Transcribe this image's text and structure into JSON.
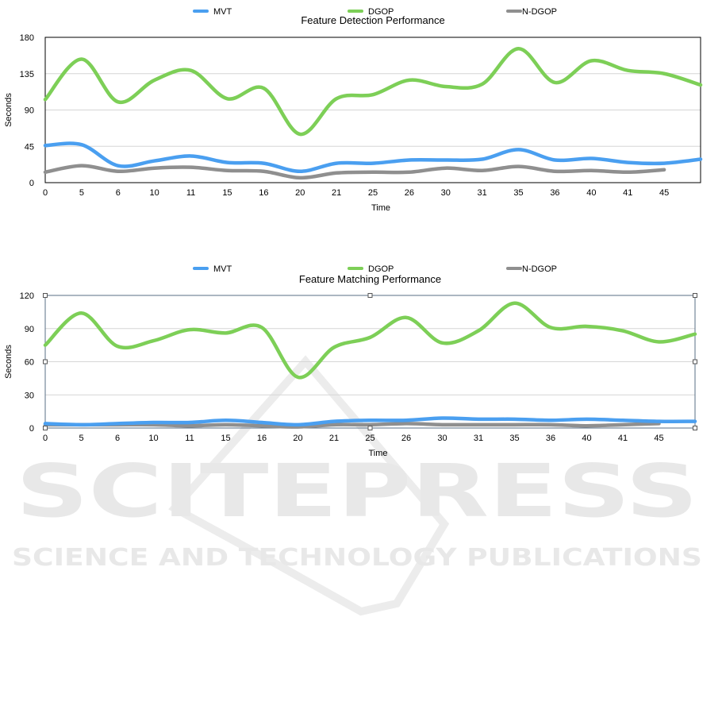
{
  "watermark": {
    "main": "SCITEPRESS",
    "sub": "SCIENCE AND TECHNOLOGY PUBLICATIONS"
  },
  "chart_data": [
    {
      "type": "line",
      "title": "Feature Detection Performance",
      "xlabel": "Time",
      "ylabel": "Seconds",
      "ylim": [
        0,
        180
      ],
      "yticks": [
        0,
        45,
        90,
        135,
        180
      ],
      "grid": true,
      "legend": "top",
      "categories": [
        "0",
        "5",
        "6",
        "10",
        "11",
        "15",
        "16",
        "20",
        "21",
        "25",
        "26",
        "30",
        "31",
        "35",
        "36",
        "40",
        "41",
        "45",
        ""
      ],
      "series": [
        {
          "name": "MVT",
          "color": "#4a9ff0",
          "values": [
            46,
            47,
            21,
            27,
            33,
            25,
            24,
            14,
            24,
            24,
            28,
            28,
            29,
            41,
            28,
            30,
            25,
            24,
            29
          ]
        },
        {
          "name": "DGOP",
          "color": "#7dcf57",
          "values": [
            103,
            153,
            100,
            127,
            139,
            104,
            117,
            60,
            104,
            109,
            127,
            119,
            122,
            166,
            124,
            151,
            139,
            135,
            121
          ]
        },
        {
          "name": "N-DGOP",
          "color": "#8f8f8f",
          "values": [
            13,
            21,
            14,
            18,
            19,
            15,
            14,
            6,
            12,
            13,
            13,
            18,
            15,
            20,
            14,
            15,
            13,
            16,
            null
          ]
        }
      ]
    },
    {
      "type": "line",
      "title": "Feature Matching Performance",
      "xlabel": "Time",
      "ylabel": "Seconds",
      "ylim": [
        0,
        120
      ],
      "yticks": [
        0,
        30,
        60,
        90,
        120
      ],
      "grid": true,
      "legend": "top",
      "categories": [
        "0",
        "5",
        "6",
        "10",
        "11",
        "15",
        "16",
        "20",
        "21",
        "25",
        "26",
        "30",
        "31",
        "35",
        "36",
        "40",
        "41",
        "45",
        ""
      ],
      "series": [
        {
          "name": "MVT",
          "color": "#4a9ff0",
          "values": [
            4,
            3,
            4,
            5,
            5,
            7,
            5,
            3,
            6,
            7,
            7,
            9,
            8,
            8,
            7,
            8,
            7,
            6,
            6
          ]
        },
        {
          "name": "DGOP",
          "color": "#7dcf57",
          "values": [
            75,
            104,
            74,
            79,
            89,
            86,
            91,
            46,
            73,
            82,
            100,
            77,
            88,
            113,
            91,
            92,
            88,
            78,
            85
          ]
        },
        {
          "name": "N-DGOP",
          "color": "#8f8f8f",
          "values": [
            3,
            3,
            3,
            3,
            2,
            3,
            2,
            1,
            3,
            3,
            4,
            3,
            3,
            3,
            3,
            2,
            3,
            4,
            null
          ]
        }
      ]
    }
  ]
}
